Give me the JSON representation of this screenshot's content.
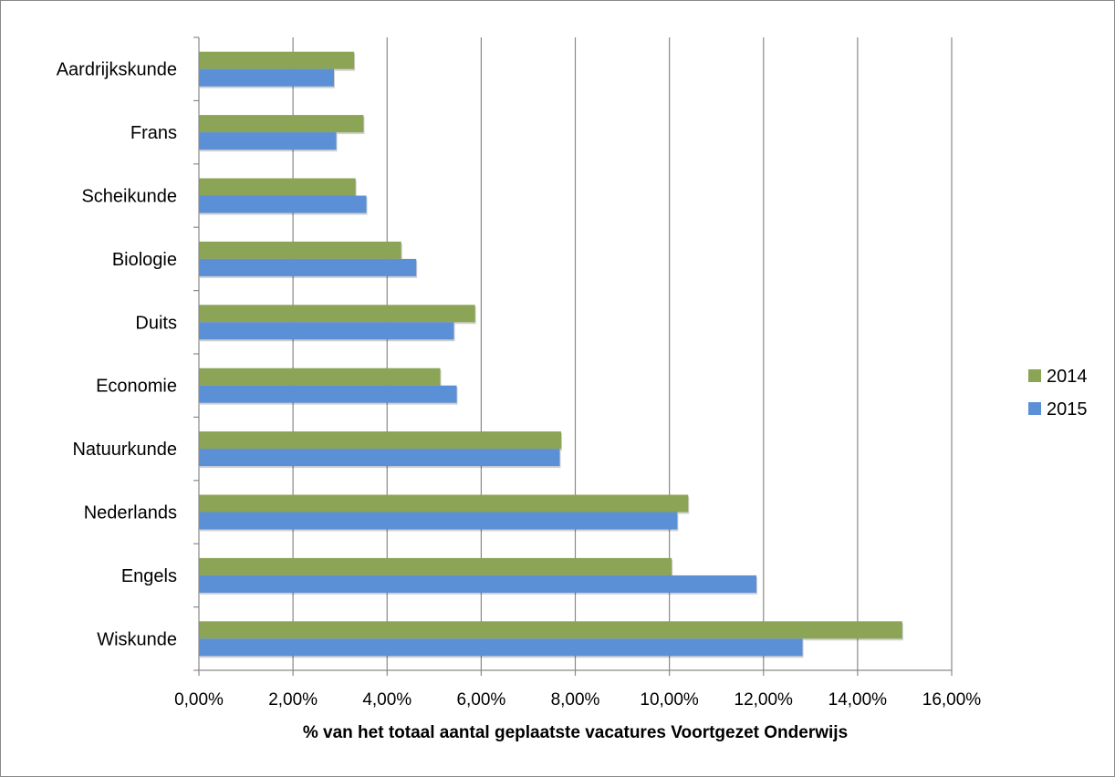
{
  "chart_data": {
    "type": "bar",
    "orientation": "horizontal",
    "categories": [
      "Aardrijkskunde",
      "Frans",
      "Scheikunde",
      "Biologie",
      "Duits",
      "Economie",
      "Natuurkunde",
      "Nederlands",
      "Engels",
      "Wiskunde"
    ],
    "series": [
      {
        "name": "2014",
        "color": "#8BA456",
        "values": [
          3.3,
          3.5,
          3.33,
          4.3,
          5.87,
          5.13,
          7.7,
          10.4,
          10.05,
          14.95
        ]
      },
      {
        "name": "2015",
        "color": "#5B8FD6",
        "values": [
          2.87,
          2.92,
          3.56,
          4.62,
          5.42,
          5.48,
          7.67,
          10.17,
          11.85,
          12.83
        ]
      }
    ],
    "xlabel": "% van het totaal aantal geplaatste vacatures Voortgezet Onderwijs",
    "ylabel": "",
    "xlim": [
      0,
      16
    ],
    "xticks": [
      "0,00%",
      "2,00%",
      "4,00%",
      "6,00%",
      "8,00%",
      "10,00%",
      "12,00%",
      "14,00%",
      "16,00%"
    ],
    "grid": "vertical",
    "legend": "right"
  }
}
